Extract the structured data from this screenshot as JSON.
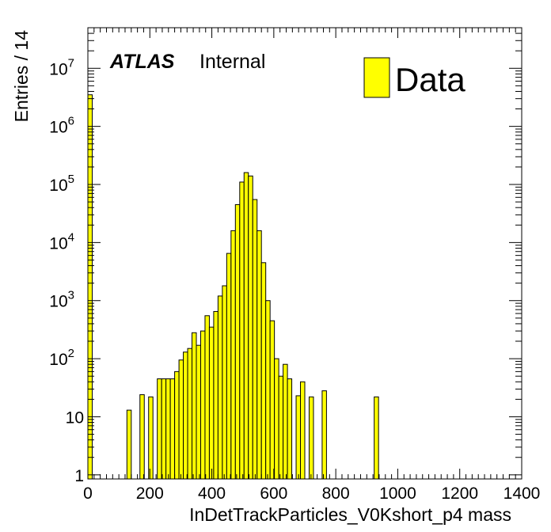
{
  "chart_data": {
    "type": "bar",
    "style": "histogram",
    "title": "",
    "xlabel": "InDetTrackParticles_V0Kshort_p4 mass",
    "ylabel": "Entries / 14",
    "xlim": [
      0,
      1400
    ],
    "ylim": [
      0.85,
      50000000
    ],
    "yscale": "log",
    "bin_width": 14,
    "x_ticks": [
      0,
      200,
      400,
      600,
      800,
      1000,
      1200,
      1400
    ],
    "x_tick_labels": [
      "0",
      "200",
      "400",
      "600",
      "800",
      "1000",
      "1200",
      "1400"
    ],
    "y_ticks": [
      1,
      10,
      100,
      1000,
      10000,
      100000,
      1000000,
      10000000
    ],
    "y_tick_labels": [
      {
        "base": "1",
        "exp": ""
      },
      {
        "base": "10",
        "exp": ""
      },
      {
        "base": "10",
        "exp": "2"
      },
      {
        "base": "10",
        "exp": "3"
      },
      {
        "base": "10",
        "exp": "4"
      },
      {
        "base": "10",
        "exp": "5"
      },
      {
        "base": "10",
        "exp": "6"
      },
      {
        "base": "10",
        "exp": "7"
      }
    ],
    "fill_color": "#ffff00",
    "edge_color": "#000000",
    "grid": false,
    "legend_position": "top-right",
    "series": [
      {
        "name": "Data",
        "bins": [
          {
            "x": 0,
            "value": 3500000
          },
          {
            "x": 126,
            "value": 13
          },
          {
            "x": 168,
            "value": 24
          },
          {
            "x": 196,
            "value": 22
          },
          {
            "x": 224,
            "value": 45
          },
          {
            "x": 238,
            "value": 45
          },
          {
            "x": 252,
            "value": 45
          },
          {
            "x": 266,
            "value": 45
          },
          {
            "x": 280,
            "value": 60
          },
          {
            "x": 294,
            "value": 95
          },
          {
            "x": 308,
            "value": 130
          },
          {
            "x": 322,
            "value": 150
          },
          {
            "x": 336,
            "value": 280
          },
          {
            "x": 350,
            "value": 170
          },
          {
            "x": 364,
            "value": 300
          },
          {
            "x": 378,
            "value": 550
          },
          {
            "x": 392,
            "value": 350
          },
          {
            "x": 406,
            "value": 650
          },
          {
            "x": 420,
            "value": 1200
          },
          {
            "x": 434,
            "value": 1800
          },
          {
            "x": 448,
            "value": 6500
          },
          {
            "x": 462,
            "value": 16000
          },
          {
            "x": 476,
            "value": 45000
          },
          {
            "x": 490,
            "value": 110000
          },
          {
            "x": 504,
            "value": 160000
          },
          {
            "x": 518,
            "value": 140000
          },
          {
            "x": 532,
            "value": 55000
          },
          {
            "x": 546,
            "value": 16000
          },
          {
            "x": 560,
            "value": 4500
          },
          {
            "x": 574,
            "value": 1000
          },
          {
            "x": 588,
            "value": 450
          },
          {
            "x": 602,
            "value": 100
          },
          {
            "x": 616,
            "value": 50
          },
          {
            "x": 630,
            "value": 80
          },
          {
            "x": 644,
            "value": 45
          },
          {
            "x": 672,
            "value": 23
          },
          {
            "x": 686,
            "value": 40
          },
          {
            "x": 714,
            "value": 22
          },
          {
            "x": 756,
            "value": 28
          },
          {
            "x": 924,
            "value": 22
          }
        ]
      }
    ],
    "annotations": [
      {
        "text": "ATLAS",
        "style": "bold-italic"
      },
      {
        "text": "Internal",
        "style": "normal"
      }
    ]
  }
}
